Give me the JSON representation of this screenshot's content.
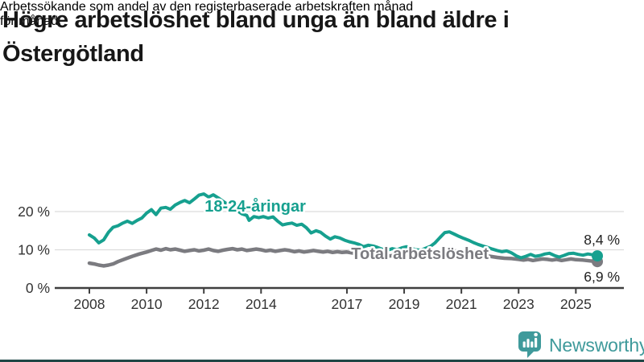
{
  "title_lines": [
    "Högre arbetslöshet bland unga än bland äldre i",
    "Östergötland"
  ],
  "subtitle_lines": [
    "Arbetssökande som andel av den registerbaserade arbetskraften månad",
    "för månad."
  ],
  "branding": {
    "logo_text": "Newsworthy"
  },
  "colors": {
    "accent_teal": "#16a08f",
    "series_gray": "#7b7b80",
    "logo_teal": "#3f9a9b",
    "grid": "#dcdcdc",
    "axis": "#3f3f3f",
    "value_label": "#222222",
    "bottom_bar": "#1f4746"
  },
  "chart_data": {
    "type": "line",
    "title": "Högre arbetslöshet bland unga än bland äldre i Östergötland",
    "subtitle": "Arbetssökande som andel av den registerbaserade arbetskraften månad för månad.",
    "unit": "%",
    "grid": "horizontal",
    "legend_position": "inline-labels",
    "xlim": [
      2007.7,
      2026.2
    ],
    "ylim": [
      0,
      26
    ],
    "yticks": [
      {
        "value": 0,
        "label": "0 %"
      },
      {
        "value": 10,
        "label": "10 %"
      },
      {
        "value": 20,
        "label": "20 %"
      }
    ],
    "xticks": [
      {
        "value": 2008,
        "label": "2008"
      },
      {
        "value": 2010,
        "label": "2010"
      },
      {
        "value": 2012,
        "label": "2012"
      },
      {
        "value": 2014,
        "label": "2014"
      },
      {
        "value": 2017,
        "label": "2017"
      },
      {
        "value": 2019,
        "label": "2019"
      },
      {
        "value": 2021,
        "label": "2021"
      },
      {
        "value": 2023,
        "label": "2023"
      },
      {
        "value": 2025,
        "label": "2025"
      }
    ],
    "series": [
      {
        "name": "Total arbetslöshet",
        "color": "#7b7b80",
        "line_width": 4.5,
        "end_value_label": "6,9 %",
        "end_label_placement": "below",
        "inline_label": {
          "x": 2017.15,
          "y": 7.6
        },
        "points": [
          [
            2008.0,
            6.5
          ],
          [
            2008.17,
            6.3
          ],
          [
            2008.33,
            6.0
          ],
          [
            2008.5,
            5.8
          ],
          [
            2008.67,
            6.0
          ],
          [
            2008.83,
            6.3
          ],
          [
            2009.0,
            6.9
          ],
          [
            2009.25,
            7.6
          ],
          [
            2009.5,
            8.3
          ],
          [
            2009.75,
            8.9
          ],
          [
            2010.0,
            9.4
          ],
          [
            2010.17,
            9.8
          ],
          [
            2010.33,
            10.2
          ],
          [
            2010.5,
            9.9
          ],
          [
            2010.67,
            10.3
          ],
          [
            2010.83,
            10.0
          ],
          [
            2011.0,
            10.2
          ],
          [
            2011.17,
            9.9
          ],
          [
            2011.33,
            9.6
          ],
          [
            2011.5,
            9.8
          ],
          [
            2011.67,
            10.0
          ],
          [
            2011.83,
            9.7
          ],
          [
            2012.0,
            9.9
          ],
          [
            2012.17,
            10.2
          ],
          [
            2012.33,
            9.8
          ],
          [
            2012.5,
            9.6
          ],
          [
            2012.67,
            9.9
          ],
          [
            2012.83,
            10.1
          ],
          [
            2013.0,
            10.3
          ],
          [
            2013.17,
            10.0
          ],
          [
            2013.33,
            10.2
          ],
          [
            2013.5,
            9.8
          ],
          [
            2013.67,
            10.0
          ],
          [
            2013.83,
            10.2
          ],
          [
            2014.0,
            10.0
          ],
          [
            2014.17,
            9.7
          ],
          [
            2014.33,
            9.9
          ],
          [
            2014.5,
            9.6
          ],
          [
            2014.67,
            9.8
          ],
          [
            2014.83,
            10.0
          ],
          [
            2015.0,
            9.8
          ],
          [
            2015.17,
            9.5
          ],
          [
            2015.33,
            9.7
          ],
          [
            2015.5,
            9.4
          ],
          [
            2015.67,
            9.6
          ],
          [
            2015.83,
            9.8
          ],
          [
            2016.0,
            9.6
          ],
          [
            2016.17,
            9.4
          ],
          [
            2016.33,
            9.6
          ],
          [
            2016.5,
            9.3
          ],
          [
            2016.67,
            9.5
          ],
          [
            2016.83,
            9.3
          ],
          [
            2017.0,
            9.4
          ],
          [
            2017.25,
            9.1
          ],
          [
            2017.5,
            8.9
          ],
          [
            2017.75,
            9.1
          ],
          [
            2018.0,
            8.9
          ],
          [
            2018.25,
            8.6
          ],
          [
            2018.5,
            8.4
          ],
          [
            2018.75,
            8.6
          ],
          [
            2019.0,
            8.5
          ],
          [
            2019.25,
            8.3
          ],
          [
            2019.5,
            8.4
          ],
          [
            2019.75,
            8.6
          ],
          [
            2020.0,
            8.8
          ],
          [
            2020.25,
            9.5
          ],
          [
            2020.5,
            9.9
          ],
          [
            2020.75,
            9.7
          ],
          [
            2021.0,
            9.5
          ],
          [
            2021.25,
            9.2
          ],
          [
            2021.5,
            8.9
          ],
          [
            2021.75,
            8.6
          ],
          [
            2022.0,
            8.3
          ],
          [
            2022.25,
            8.0
          ],
          [
            2022.5,
            7.8
          ],
          [
            2022.75,
            7.7
          ],
          [
            2023.0,
            7.5
          ],
          [
            2023.17,
            7.3
          ],
          [
            2023.33,
            7.5
          ],
          [
            2023.5,
            7.2
          ],
          [
            2023.67,
            7.4
          ],
          [
            2023.83,
            7.6
          ],
          [
            2024.0,
            7.5
          ],
          [
            2024.17,
            7.3
          ],
          [
            2024.33,
            7.5
          ],
          [
            2024.5,
            7.2
          ],
          [
            2024.67,
            7.4
          ],
          [
            2024.83,
            7.6
          ],
          [
            2025.0,
            7.4
          ],
          [
            2025.25,
            7.3
          ],
          [
            2025.5,
            7.1
          ],
          [
            2025.75,
            6.9
          ]
        ]
      },
      {
        "name": "18-24-åringar",
        "color": "#16a08f",
        "line_width": 4,
        "end_value_label": "8,4 %",
        "end_label_placement": "above",
        "inline_label": {
          "x": 2012.03,
          "y": 20.0
        },
        "points": [
          [
            2008.0,
            13.9
          ],
          [
            2008.17,
            13.1
          ],
          [
            2008.33,
            11.8
          ],
          [
            2008.5,
            12.6
          ],
          [
            2008.67,
            14.6
          ],
          [
            2008.83,
            15.9
          ],
          [
            2009.0,
            16.3
          ],
          [
            2009.17,
            17.0
          ],
          [
            2009.33,
            17.5
          ],
          [
            2009.5,
            16.9
          ],
          [
            2009.67,
            17.7
          ],
          [
            2009.83,
            18.3
          ],
          [
            2010.0,
            19.6
          ],
          [
            2010.17,
            20.5
          ],
          [
            2010.33,
            19.2
          ],
          [
            2010.5,
            20.9
          ],
          [
            2010.67,
            21.1
          ],
          [
            2010.83,
            20.6
          ],
          [
            2011.0,
            21.7
          ],
          [
            2011.17,
            22.4
          ],
          [
            2011.33,
            22.9
          ],
          [
            2011.5,
            22.3
          ],
          [
            2011.67,
            23.3
          ],
          [
            2011.83,
            24.3
          ],
          [
            2012.0,
            24.6
          ],
          [
            2012.17,
            23.8
          ],
          [
            2012.33,
            24.4
          ],
          [
            2012.5,
            23.6
          ],
          [
            2012.67,
            22.7
          ],
          [
            2012.83,
            21.9
          ],
          [
            2013.0,
            21.0
          ],
          [
            2013.17,
            20.2
          ],
          [
            2013.33,
            19.4
          ],
          [
            2013.5,
            19.0
          ],
          [
            2013.58,
            17.7
          ],
          [
            2013.75,
            18.7
          ],
          [
            2013.92,
            18.4
          ],
          [
            2014.08,
            18.7
          ],
          [
            2014.25,
            18.3
          ],
          [
            2014.42,
            18.6
          ],
          [
            2014.58,
            17.5
          ],
          [
            2014.75,
            16.5
          ],
          [
            2014.92,
            16.8
          ],
          [
            2015.08,
            17.0
          ],
          [
            2015.25,
            16.4
          ],
          [
            2015.42,
            16.7
          ],
          [
            2015.58,
            15.8
          ],
          [
            2015.75,
            14.4
          ],
          [
            2015.92,
            15.0
          ],
          [
            2016.08,
            14.6
          ],
          [
            2016.25,
            13.6
          ],
          [
            2016.42,
            12.8
          ],
          [
            2016.58,
            13.4
          ],
          [
            2016.75,
            13.1
          ],
          [
            2016.92,
            12.5
          ],
          [
            2017.08,
            12.1
          ],
          [
            2017.25,
            11.8
          ],
          [
            2017.42,
            11.4
          ],
          [
            2017.58,
            10.8
          ],
          [
            2017.75,
            11.2
          ],
          [
            2017.92,
            11.0
          ],
          [
            2018.08,
            10.6
          ],
          [
            2018.25,
            10.1
          ],
          [
            2018.42,
            9.9
          ],
          [
            2018.58,
            10.3
          ],
          [
            2018.75,
            10.0
          ],
          [
            2018.92,
            10.5
          ],
          [
            2019.08,
            10.8
          ],
          [
            2019.25,
            10.4
          ],
          [
            2019.42,
            10.0
          ],
          [
            2019.58,
            9.9
          ],
          [
            2019.75,
            10.4
          ],
          [
            2019.92,
            10.9
          ],
          [
            2020.08,
            11.8
          ],
          [
            2020.25,
            13.2
          ],
          [
            2020.42,
            14.5
          ],
          [
            2020.58,
            14.7
          ],
          [
            2020.75,
            14.1
          ],
          [
            2020.92,
            13.5
          ],
          [
            2021.08,
            13.0
          ],
          [
            2021.25,
            12.5
          ],
          [
            2021.42,
            11.9
          ],
          [
            2021.58,
            11.4
          ],
          [
            2021.75,
            11.0
          ],
          [
            2021.92,
            10.6
          ],
          [
            2022.08,
            10.2
          ],
          [
            2022.25,
            9.8
          ],
          [
            2022.42,
            9.5
          ],
          [
            2022.58,
            9.7
          ],
          [
            2022.75,
            9.2
          ],
          [
            2022.92,
            8.4
          ],
          [
            2023.08,
            7.9
          ],
          [
            2023.25,
            8.3
          ],
          [
            2023.42,
            8.8
          ],
          [
            2023.58,
            8.3
          ],
          [
            2023.75,
            8.5
          ],
          [
            2023.92,
            8.9
          ],
          [
            2024.08,
            9.1
          ],
          [
            2024.25,
            8.5
          ],
          [
            2024.42,
            8.1
          ],
          [
            2024.58,
            8.5
          ],
          [
            2024.75,
            9.0
          ],
          [
            2024.92,
            9.1
          ],
          [
            2025.08,
            8.8
          ],
          [
            2025.25,
            8.6
          ],
          [
            2025.42,
            8.9
          ],
          [
            2025.58,
            8.7
          ],
          [
            2025.75,
            8.4
          ]
        ]
      }
    ]
  }
}
